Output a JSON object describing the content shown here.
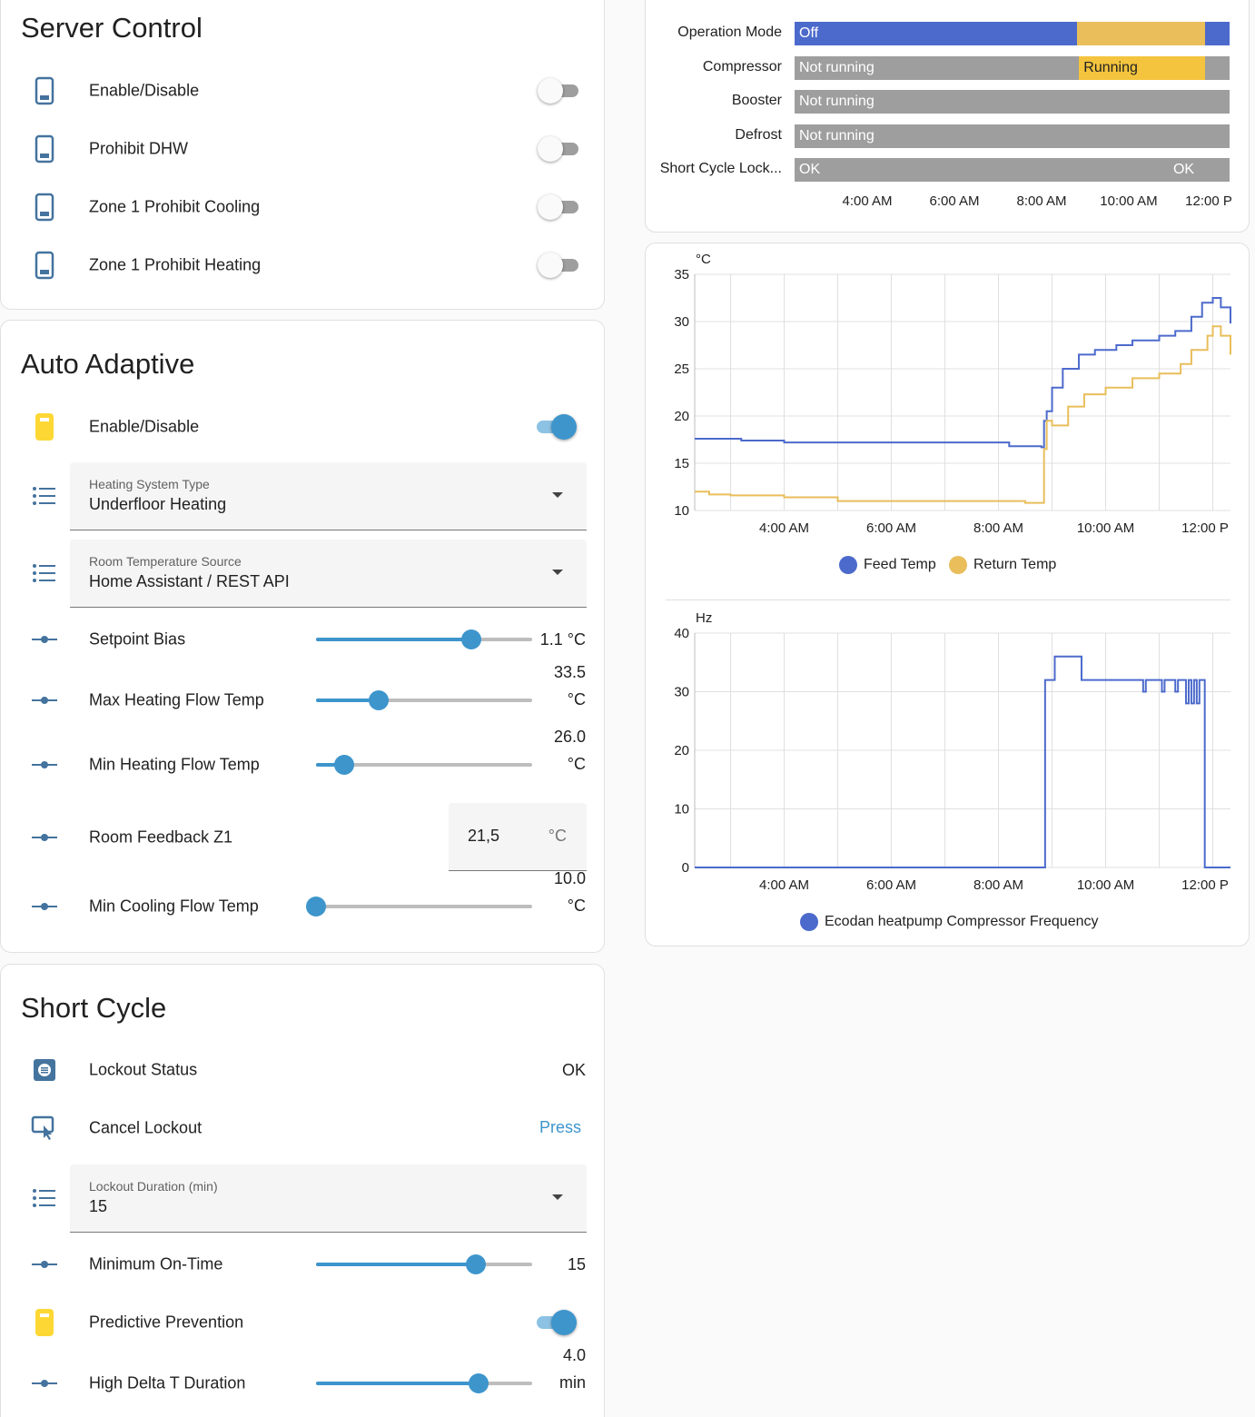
{
  "colors": {
    "accent": "#3d95cc",
    "icon_blue": "#44739e",
    "icon_yellow": "#fdd835",
    "series_blue": "#4c6acc",
    "series_yellow": "#e9be5b",
    "timeline_gray": "#9e9e9e",
    "running_yellow": "#f4c43e"
  },
  "server_control": {
    "title": "Server Control",
    "items": [
      {
        "label": "Enable/Disable",
        "icon": "phone-icon",
        "state": "off"
      },
      {
        "label": "Prohibit DHW",
        "icon": "phone-icon",
        "state": "off"
      },
      {
        "label": "Zone 1 Prohibit Cooling",
        "icon": "phone-icon",
        "state": "off"
      },
      {
        "label": "Zone 1 Prohibit Heating",
        "icon": "phone-icon",
        "state": "off"
      }
    ]
  },
  "auto_adaptive": {
    "title": "Auto Adaptive",
    "enable": {
      "label": "Enable/Disable",
      "icon": "phone-icon",
      "state": "on"
    },
    "heating_system": {
      "label": "Heating System Type",
      "value": "Underfloor Heating"
    },
    "room_temp_source": {
      "label": "Room Temperature Source",
      "value": "Home Assistant / REST API"
    },
    "setpoint_bias": {
      "label": "Setpoint Bias",
      "value": "1.1 °C",
      "fraction": 0.72
    },
    "max_heating_flow": {
      "label": "Max Heating Flow Temp",
      "value_line1": "33.5",
      "value_line2": "°C",
      "fraction": 0.29
    },
    "min_heating_flow": {
      "label": "Min Heating Flow Temp",
      "value_line1": "26.0",
      "value_line2": "°C",
      "fraction": 0.13
    },
    "room_feedback": {
      "label": "Room Feedback Z1",
      "value": "21,5",
      "unit": "°C"
    },
    "min_cooling_flow": {
      "label": "Min Cooling Flow Temp",
      "value_line1": "10.0",
      "value_line2": "°C",
      "fraction": 0.0
    }
  },
  "short_cycle": {
    "title": "Short Cycle",
    "lockout_status": {
      "label": "Lockout Status",
      "value": "OK"
    },
    "cancel_lockout": {
      "label": "Cancel Lockout",
      "action": "Press"
    },
    "lockout_duration": {
      "label": "Lockout Duration (min)",
      "value": "15"
    },
    "min_on_time": {
      "label": "Minimum On-Time",
      "value": "15",
      "fraction": 0.74
    },
    "predictive_prevention": {
      "label": "Predictive Prevention",
      "state": "on"
    },
    "high_delta_t": {
      "label": "High Delta T Duration",
      "value_line1": "4.0",
      "value_line2": "min",
      "fraction": 0.75
    }
  },
  "timeline": {
    "rows": [
      {
        "name": "Operation Mode",
        "segments": [
          {
            "label": "Off",
            "from": 0.0,
            "to": 0.65,
            "color": "#4c6acc"
          },
          {
            "label": "",
            "from": 0.65,
            "to": 0.944,
            "color": "#e9be5b"
          },
          {
            "label": "",
            "from": 0.944,
            "to": 1.0,
            "color": "#4c6acc"
          }
        ]
      },
      {
        "name": "Compressor",
        "segments": [
          {
            "label": "Not running",
            "from": 0.0,
            "to": 0.654,
            "color": "#9e9e9e"
          },
          {
            "label": "Running",
            "from": 0.654,
            "to": 0.944,
            "color": "#f4c43e"
          },
          {
            "label": "",
            "from": 0.944,
            "to": 1.0,
            "color": "#9e9e9e"
          }
        ]
      },
      {
        "name": "Booster",
        "segments": [
          {
            "label": "Not running",
            "from": 0.0,
            "to": 1.0,
            "color": "#9e9e9e"
          }
        ]
      },
      {
        "name": "Defrost",
        "segments": [
          {
            "label": "Not running",
            "from": 0.0,
            "to": 1.0,
            "color": "#9e9e9e"
          }
        ]
      },
      {
        "name": "Short Cycle Lock...",
        "segments": [
          {
            "label": "OK",
            "from": 0.0,
            "to": 0.86,
            "color": "#9e9e9e"
          },
          {
            "label": "OK",
            "from": 0.86,
            "to": 1.0,
            "color": "#9e9e9e"
          }
        ]
      }
    ],
    "x_ticks": [
      "4:00 AM",
      "6:00 AM",
      "8:00 AM",
      "10:00 AM",
      "12:00 P"
    ]
  },
  "chart_data": [
    {
      "type": "line",
      "ylabel": "°C",
      "ylim": [
        10,
        35
      ],
      "y_ticks": [
        "35",
        "30",
        "25",
        "20",
        "15",
        "10"
      ],
      "x_ticks": [
        "4:00 AM",
        "6:00 AM",
        "8:00 AM",
        "10:00 AM",
        "12:00 P"
      ],
      "x_range_hours": [
        2.33,
        12.33
      ],
      "grid": true,
      "legend": "bottom",
      "series": [
        {
          "name": "Feed Temp",
          "color": "#4c6acc",
          "points": [
            [
              2.33,
              17.6
            ],
            [
              3.1,
              17.6
            ],
            [
              3.2,
              17.4
            ],
            [
              4.0,
              17.2
            ],
            [
              8.0,
              17.2
            ],
            [
              8.2,
              16.8
            ],
            [
              8.8,
              16.7
            ],
            [
              8.85,
              19.5
            ],
            [
              8.9,
              20.5
            ],
            [
              9.0,
              23
            ],
            [
              9.2,
              25.0
            ],
            [
              9.5,
              26.5
            ],
            [
              9.8,
              27.0
            ],
            [
              10.2,
              27.5
            ],
            [
              10.5,
              28.0
            ],
            [
              11.0,
              28.5
            ],
            [
              11.3,
              29.0
            ],
            [
              11.6,
              30.5
            ],
            [
              11.8,
              32.0
            ],
            [
              12.0,
              32.5
            ],
            [
              12.15,
              31.5
            ],
            [
              12.33,
              29.8
            ]
          ]
        },
        {
          "name": "Return Temp",
          "color": "#e9be5b",
          "points": [
            [
              2.33,
              12.0
            ],
            [
              2.6,
              11.7
            ],
            [
              3.0,
              11.6
            ],
            [
              4.0,
              11.4
            ],
            [
              5.0,
              11.0
            ],
            [
              8.0,
              11.0
            ],
            [
              8.5,
              10.8
            ],
            [
              8.8,
              10.8
            ],
            [
              8.85,
              16.5
            ],
            [
              8.9,
              19.5
            ],
            [
              9.0,
              19.0
            ],
            [
              9.3,
              21.0
            ],
            [
              9.6,
              22.3
            ],
            [
              10.0,
              23.0
            ],
            [
              10.5,
              24.0
            ],
            [
              11.0,
              24.5
            ],
            [
              11.4,
              25.5
            ],
            [
              11.6,
              27.0
            ],
            [
              11.9,
              28.5
            ],
            [
              12.0,
              29.5
            ],
            [
              12.15,
              28.5
            ],
            [
              12.33,
              26.5
            ]
          ]
        }
      ]
    },
    {
      "type": "line",
      "ylabel": "Hz",
      "ylim": [
        0,
        40
      ],
      "y_ticks": [
        "40",
        "30",
        "20",
        "10",
        "0"
      ],
      "x_ticks": [
        "4:00 AM",
        "6:00 AM",
        "8:00 AM",
        "10:00 AM",
        "12:00 P"
      ],
      "x_range_hours": [
        2.33,
        12.33
      ],
      "grid": true,
      "legend": "bottom",
      "series": [
        {
          "name": "Ecodan heatpump Compressor Frequency",
          "color": "#4c6acc",
          "points": [
            [
              2.33,
              0
            ],
            [
              8.87,
              0
            ],
            [
              8.87,
              32
            ],
            [
              9.05,
              32
            ],
            [
              9.05,
              36
            ],
            [
              9.55,
              36
            ],
            [
              9.55,
              32
            ],
            [
              10.7,
              32
            ],
            [
              10.7,
              30
            ],
            [
              10.75,
              30
            ],
            [
              10.75,
              32
            ],
            [
              11.05,
              32
            ],
            [
              11.05,
              30
            ],
            [
              11.1,
              30
            ],
            [
              11.1,
              32
            ],
            [
              11.3,
              32
            ],
            [
              11.3,
              30
            ],
            [
              11.35,
              30
            ],
            [
              11.35,
              32
            ],
            [
              11.5,
              32
            ],
            [
              11.5,
              28
            ],
            [
              11.55,
              28
            ],
            [
              11.55,
              32
            ],
            [
              11.6,
              32
            ],
            [
              11.6,
              28
            ],
            [
              11.65,
              28
            ],
            [
              11.65,
              32
            ],
            [
              11.7,
              32
            ],
            [
              11.7,
              28
            ],
            [
              11.75,
              28
            ],
            [
              11.75,
              32
            ],
            [
              11.85,
              32
            ],
            [
              11.85,
              0
            ],
            [
              12.33,
              0
            ]
          ]
        }
      ]
    }
  ]
}
